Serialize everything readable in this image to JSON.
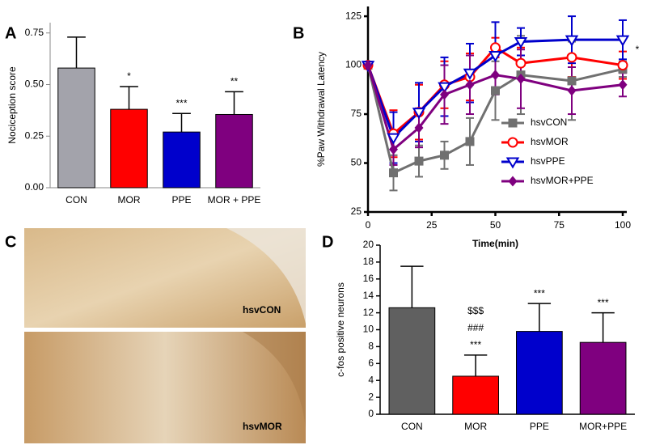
{
  "chart_data": [
    {
      "type": "bar",
      "panel": "A",
      "ylabel": "Nociception score",
      "categories": [
        "CON",
        "MOR",
        "PPE",
        "MOR + PPE"
      ],
      "values": [
        0.58,
        0.38,
        0.27,
        0.355
      ],
      "errors": [
        0.15,
        0.11,
        0.09,
        0.11
      ],
      "colors": [
        "#a3a3ab",
        "#ff0000",
        "#0000cc",
        "#7f007f"
      ],
      "annotations": [
        null,
        [
          "*"
        ],
        [
          "***"
        ],
        [
          "**"
        ]
      ],
      "ylim": [
        0,
        0.8
      ],
      "yticks": [
        {
          "value": 0,
          "label": "0.00"
        },
        0.25,
        {
          "value": 0.5,
          "label": "0.50"
        },
        0.75
      ]
    },
    {
      "type": "line",
      "panel": "B",
      "xlabel": "Time(min)",
      "ylabel": "%Paw Withdrawal Latency",
      "annotation": "*",
      "x": [
        0,
        10,
        20,
        30,
        40,
        50,
        60,
        80,
        100
      ],
      "series": [
        {
          "name": "hsvCON",
          "color": "#707070",
          "marker": "square",
          "values": [
            100,
            45,
            51,
            54,
            61,
            87,
            95,
            92,
            98
          ],
          "errors": [
            0,
            9,
            8,
            7,
            12,
            15,
            20,
            20,
            4
          ]
        },
        {
          "name": "hsvMOR",
          "color": "#ff0000",
          "marker": "circle",
          "values": [
            100,
            65,
            76,
            90,
            94,
            109,
            101,
            104,
            100
          ],
          "errors": [
            0,
            12,
            14,
            12,
            12,
            5,
            8,
            10,
            7
          ]
        },
        {
          "name": "hsvPPE",
          "color": "#0000cc",
          "marker": "triangle-down",
          "values": [
            100,
            63,
            76,
            89,
            96,
            105,
            112,
            113,
            113
          ],
          "errors": [
            0,
            13,
            15,
            15,
            15,
            17,
            7,
            12,
            10
          ]
        },
        {
          "name": "hsvMOR+PPE",
          "color": "#7f007f",
          "marker": "diamond",
          "values": [
            100,
            57,
            68,
            85,
            90,
            95,
            93,
            87,
            90
          ],
          "errors": [
            0,
            8,
            10,
            15,
            15,
            10,
            15,
            12,
            6
          ]
        }
      ],
      "xlim": [
        0,
        100
      ],
      "xticks": [
        0,
        25,
        50,
        75,
        100
      ],
      "ylim": [
        25,
        130
      ],
      "yticks": [
        25,
        50,
        75,
        100,
        125
      ],
      "legend": "lower-right"
    },
    {
      "type": "bar",
      "panel": "D",
      "ylabel": "c-fos positive neurons",
      "categories": [
        "CON",
        "MOR",
        "PPE",
        "MOR+PPE"
      ],
      "values": [
        12.6,
        4.5,
        9.8,
        8.5
      ],
      "errors": [
        4.9,
        2.5,
        3.3,
        3.5
      ],
      "colors": [
        "#606060",
        "#ff0000",
        "#0000cc",
        "#7f007f"
      ],
      "annotations": [
        null,
        [
          "***",
          "###",
          "$$$"
        ],
        [
          "***"
        ],
        [
          "***"
        ]
      ],
      "ylim": [
        0,
        20
      ],
      "yticks": [
        0,
        2,
        4,
        6,
        8,
        10,
        12,
        14,
        16,
        18,
        20
      ]
    }
  ],
  "micrographs": {
    "panel": "C",
    "labels": [
      "hsvCON",
      "hsvMOR"
    ]
  }
}
